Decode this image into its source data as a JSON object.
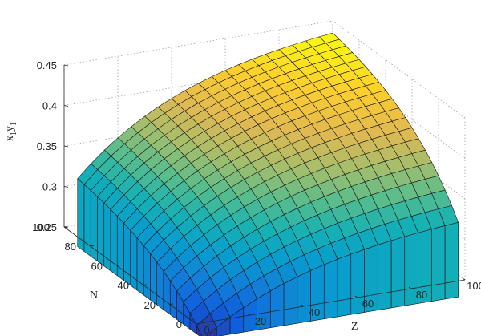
{
  "chart_data": {
    "type": "surface",
    "xlabel": "Z",
    "ylabel": "N",
    "zlabel": "x1y1",
    "zlabel_base": "x",
    "zlabel_sub1": "1",
    "zlabel_mid": "y",
    "zlabel_sub2": "1",
    "xlim": [
      0,
      100
    ],
    "ylim": [
      0,
      100
    ],
    "zlim": [
      0.25,
      0.45
    ],
    "xticks": [
      "0",
      "20",
      "40",
      "60",
      "80",
      "100"
    ],
    "yticks": [
      "0",
      "20",
      "40",
      "60",
      "80",
      "100"
    ],
    "zticks": [
      "0.25",
      "0.3",
      "0.35",
      "0.4",
      "0.45"
    ],
    "grid": true,
    "colormap": "parula",
    "x": [
      5,
      10,
      15,
      20,
      25,
      30,
      35,
      40,
      45,
      50,
      55,
      60,
      65,
      70,
      75,
      80,
      85,
      90,
      95,
      100
    ],
    "y": [
      5,
      10,
      15,
      20,
      25,
      30,
      35,
      40,
      45,
      50,
      55,
      60,
      65,
      70,
      75,
      80,
      85,
      90,
      95,
      100
    ],
    "z_model": {
      "z_at_corner_x5_y5": 0.223,
      "z_at_corner_x100_y5": 0.315,
      "z_at_corner_x5_y100": 0.307,
      "z_at_corner_x100_y100": 0.435,
      "z_at_edge_x100_y20": 0.355
    }
  }
}
